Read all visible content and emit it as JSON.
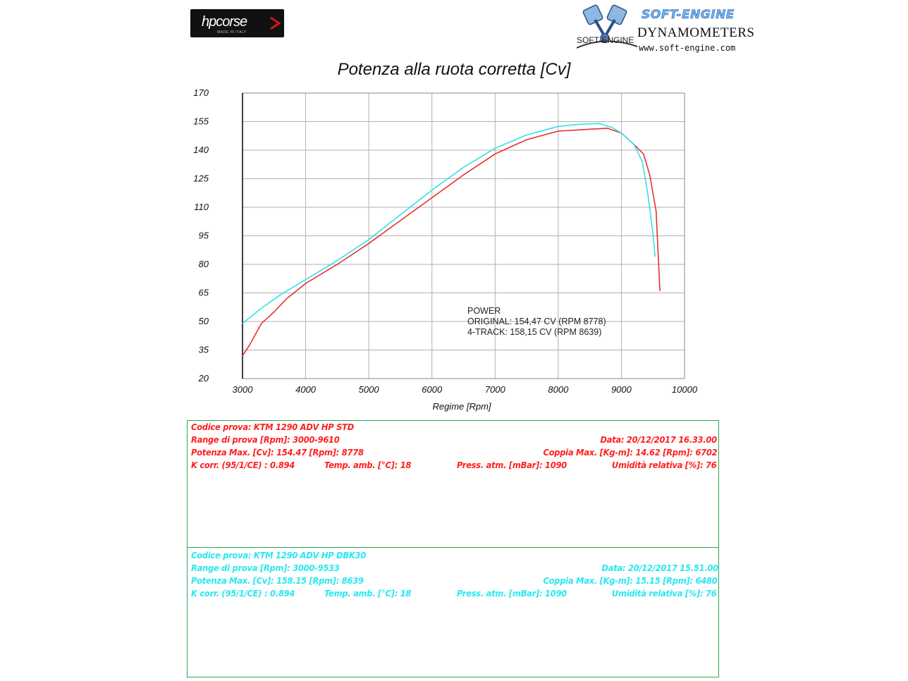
{
  "logos": {
    "hp_brand": "hpcorse",
    "hp_tagline": "MADE IN ITALY",
    "soft_title": "SOFT-ENGINE",
    "soft_sub": "DYNAMOMETERS",
    "soft_url": "www.soft-engine.com",
    "soft_mark": "SOFT-ENGINE"
  },
  "chart_data": {
    "type": "line",
    "title": "Potenza alla ruota corretta [Cv]",
    "xlabel": "Regime [Rpm]",
    "ylabel": "",
    "xlim": [
      3000,
      10000
    ],
    "ylim": [
      20,
      170
    ],
    "x_ticks": [
      3000,
      4000,
      5000,
      6000,
      7000,
      8000,
      9000,
      10000
    ],
    "y_ticks": [
      20,
      35,
      50,
      65,
      80,
      95,
      110,
      125,
      140,
      155,
      170
    ],
    "grid": true,
    "colors": {
      "original": "#e8302c",
      "four_track": "#35e0ea",
      "grid": "#b0b0b0",
      "axis": "#000000"
    },
    "series": [
      {
        "name": "ORIGINAL",
        "color": "#e8302c",
        "points": [
          [
            3000,
            32
          ],
          [
            3100,
            37
          ],
          [
            3300,
            49
          ],
          [
            3500,
            55
          ],
          [
            3700,
            62
          ],
          [
            4000,
            70
          ],
          [
            4500,
            80
          ],
          [
            5000,
            91
          ],
          [
            5500,
            103
          ],
          [
            6000,
            115
          ],
          [
            6500,
            127
          ],
          [
            7000,
            138
          ],
          [
            7500,
            145.5
          ],
          [
            8000,
            150
          ],
          [
            8500,
            151
          ],
          [
            8778,
            151.5
          ],
          [
            9000,
            149
          ],
          [
            9200,
            143
          ],
          [
            9350,
            138
          ],
          [
            9450,
            127
          ],
          [
            9550,
            108
          ],
          [
            9610,
            66
          ]
        ]
      },
      {
        "name": "4-TRACK",
        "color": "#35e0ea",
        "points": [
          [
            3000,
            49
          ],
          [
            3300,
            57
          ],
          [
            3600,
            64
          ],
          [
            4000,
            72
          ],
          [
            4500,
            82
          ],
          [
            5000,
            93
          ],
          [
            5500,
            106
          ],
          [
            6000,
            119
          ],
          [
            6500,
            131
          ],
          [
            7000,
            141
          ],
          [
            7500,
            148
          ],
          [
            8000,
            152.5
          ],
          [
            8300,
            153.5
          ],
          [
            8639,
            154
          ],
          [
            8850,
            152
          ],
          [
            9000,
            149
          ],
          [
            9200,
            143
          ],
          [
            9330,
            134
          ],
          [
            9420,
            117
          ],
          [
            9500,
            96
          ],
          [
            9533,
            84
          ]
        ]
      }
    ],
    "annotation": {
      "heading": "POWER",
      "line1": "ORIGINAL: 154,47 CV (RPM 8778)",
      "line2": "4-TRACK: 158,15 CV (RPM 8639)"
    }
  },
  "tests": [
    {
      "codice": "Codice prova: KTM 1290 ADV HP STD",
      "range": "Range di prova [Rpm]: 3000-9610",
      "data": "Data: 20/12/2017   16.33.00",
      "potenza": "Potenza Max. [Cv]: 154.47   [Rpm]: 8778",
      "coppia": "Coppia Max. [Kg-m]: 14.62   [Rpm]: 6702",
      "kcorr": "K corr. (95/1/CE) : 0.894",
      "temp": "Temp. amb. [°C]: 18",
      "press": "Press. atm. [mBar]: 1090",
      "umid": "Umidità relativa [%]: 76",
      "color": "#ff2020"
    },
    {
      "codice": "Codice prova: KTM 1290 ADV HP DBK30",
      "range": "Range di prova [Rpm]: 3000-9533",
      "data": "Data: 20/12/2017   15.51.00",
      "potenza": "Potenza Max. [Cv]: 158.15   [Rpm]: 8639",
      "coppia": "Coppia Max. [Kg-m]: 15.15   [Rpm]: 6480",
      "kcorr": "K corr. (95/1/CE) : 0.894",
      "temp": "Temp. amb. [°C]: 18",
      "press": "Press. atm. [mBar]: 1090",
      "umid": "Umidità relativa [%]: 76",
      "color": "#28e8f0"
    }
  ]
}
